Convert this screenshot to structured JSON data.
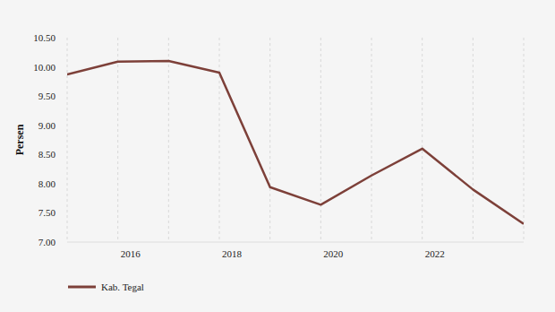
{
  "chart_data": {
    "type": "line",
    "y_label": "Persen",
    "categories": [
      null,
      "2016",
      null,
      "2018",
      null,
      "2020",
      null,
      "2022",
      null,
      null
    ],
    "series": [
      {
        "name": "Kab. Tegal",
        "color": "#7d4039",
        "values": [
          9.87,
          10.09,
          10.1,
          9.9,
          7.94,
          7.64,
          8.14,
          8.6,
          7.9,
          7.31
        ]
      }
    ],
    "ylim": [
      7,
      10.5
    ],
    "yticks": [
      {
        "value": 7,
        "label": "7.00"
      },
      {
        "value": 7.5,
        "label": "7.50"
      },
      {
        "value": 8,
        "label": "8.00"
      },
      {
        "value": 8.5,
        "label": "8.50"
      },
      {
        "value": 9,
        "label": "9.00"
      },
      {
        "value": 9.5,
        "label": "9.50"
      },
      {
        "value": 10,
        "label": "10.00"
      },
      {
        "value": 10.5,
        "label": "10.50"
      }
    ],
    "grid": true,
    "legend": "bottom-left"
  }
}
